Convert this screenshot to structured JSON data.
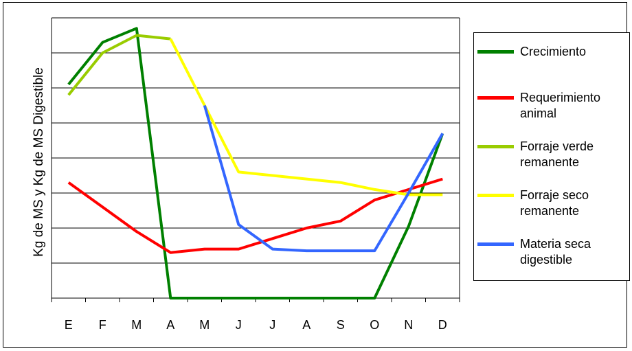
{
  "chart_data": {
    "type": "line",
    "title": "",
    "xlabel": "",
    "ylabel": "Kg de MS y Kg de MS Digestible",
    "categories": [
      "E",
      "F",
      "M",
      "A",
      "M",
      "J",
      "J",
      "A",
      "S",
      "O",
      "N",
      "D"
    ],
    "ylim": [
      0,
      8
    ],
    "grid": true,
    "legend_position": "right",
    "series": [
      {
        "name": "Crecimiento",
        "color": "#008000",
        "values": [
          6.1,
          7.3,
          7.7,
          0.0,
          0.0,
          0.0,
          0.0,
          0.0,
          0.0,
          0.0,
          2.05,
          4.7
        ]
      },
      {
        "name": "Requerimiento animal",
        "color": "#ff0000",
        "values": [
          3.3,
          2.6,
          1.9,
          1.3,
          1.4,
          1.4,
          1.7,
          2.0,
          2.2,
          2.8,
          3.1,
          3.4
        ]
      },
      {
        "name": "Forraje verde remanente",
        "color": "#99cc00",
        "values": [
          5.8,
          7.0,
          7.5,
          7.4,
          null,
          null,
          null,
          null,
          null,
          null,
          null,
          null
        ]
      },
      {
        "name": "Forraje seco remanente",
        "color": "#ffff00",
        "values": [
          null,
          null,
          null,
          7.4,
          5.5,
          3.6,
          3.5,
          3.4,
          3.3,
          3.1,
          2.95,
          2.95
        ]
      },
      {
        "name": "Materia seca digestible",
        "color": "#3366ff",
        "values": [
          null,
          null,
          null,
          null,
          5.5,
          2.1,
          1.4,
          1.35,
          1.35,
          1.35,
          3.0,
          4.7
        ]
      }
    ]
  },
  "legend": [
    {
      "line1": "Crecimiento",
      "line2": "",
      "color": "#008000"
    },
    {
      "line1": "Requerimiento",
      "line2": "animal",
      "color": "#ff0000"
    },
    {
      "line1": "Forraje verde",
      "line2": "remanente",
      "color": "#99cc00"
    },
    {
      "line1": "Forraje seco",
      "line2": "remanente",
      "color": "#ffff00"
    },
    {
      "line1": "Materia seca",
      "line2": "digestible",
      "color": "#3366ff"
    }
  ]
}
